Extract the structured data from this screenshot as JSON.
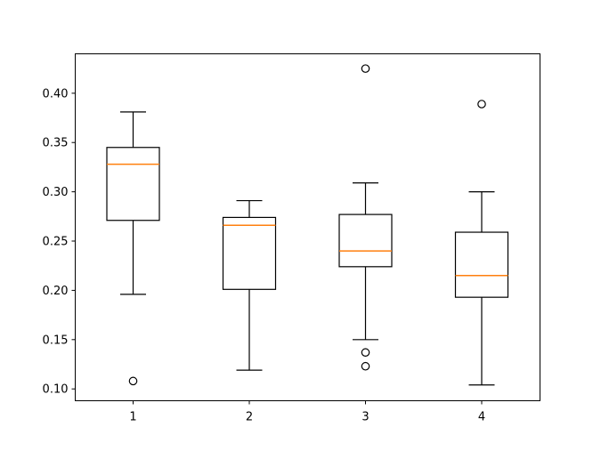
{
  "chart_data": {
    "type": "box",
    "title": "",
    "xlabel": "",
    "ylabel": "",
    "ylim": [
      0.088,
      0.44
    ],
    "y_ticks": [
      "0.10",
      "0.15",
      "0.20",
      "0.25",
      "0.30",
      "0.35",
      "0.40"
    ],
    "categories": [
      "1",
      "2",
      "3",
      "4"
    ],
    "grid": false,
    "colors": {
      "box": "#000000",
      "median": "#ff7f0e"
    },
    "boxes": [
      {
        "category": "1",
        "whisker_low": 0.196,
        "q1": 0.271,
        "median": 0.328,
        "q3": 0.345,
        "whisker_high": 0.381,
        "outliers": [
          0.108
        ]
      },
      {
        "category": "2",
        "whisker_low": 0.119,
        "q1": 0.201,
        "median": 0.266,
        "q3": 0.274,
        "whisker_high": 0.291,
        "outliers": []
      },
      {
        "category": "3",
        "whisker_low": 0.15,
        "q1": 0.224,
        "median": 0.24,
        "q3": 0.277,
        "whisker_high": 0.309,
        "outliers": [
          0.137,
          0.123,
          0.425
        ]
      },
      {
        "category": "4",
        "whisker_low": 0.104,
        "q1": 0.193,
        "median": 0.215,
        "q3": 0.259,
        "whisker_high": 0.3,
        "outliers": [
          0.389
        ]
      }
    ]
  }
}
